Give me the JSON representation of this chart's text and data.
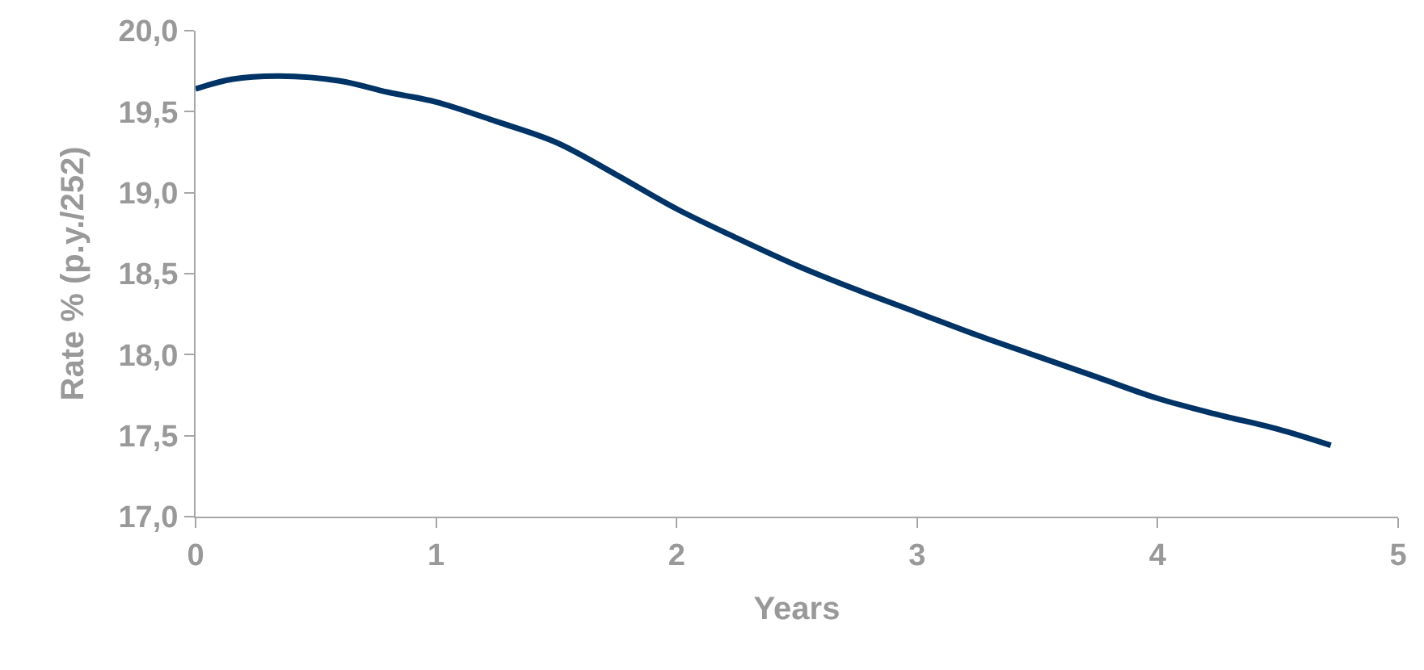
{
  "chart_data": {
    "type": "line",
    "xlabel": "Years",
    "ylabel": "Rate % (p.y./252)",
    "x": [
      0,
      0.15,
      0.35,
      0.6,
      0.8,
      1,
      1.25,
      1.5,
      1.75,
      2,
      2.25,
      2.5,
      2.75,
      3,
      3.25,
      3.5,
      3.75,
      4,
      4.25,
      4.5,
      4.72
    ],
    "series": [
      {
        "color": "#003366",
        "values": [
          19.64,
          19.7,
          19.72,
          19.69,
          19.62,
          19.56,
          19.44,
          19.31,
          19.11,
          18.9,
          18.72,
          18.55,
          18.4,
          18.26,
          18.12,
          17.99,
          17.86,
          17.73,
          17.63,
          17.54,
          17.44
        ]
      }
    ],
    "xlim": [
      0,
      5
    ],
    "xticks": [
      0,
      1,
      2,
      3,
      4,
      5
    ],
    "ylim": [
      17,
      20
    ],
    "yticks": [
      {
        "value": 17,
        "label": "17,0"
      },
      {
        "value": 17.5,
        "label": "17,5"
      },
      {
        "value": 18,
        "label": "18,0"
      },
      {
        "value": 18.5,
        "label": "18,5"
      },
      {
        "value": 19,
        "label": "19,0"
      },
      {
        "value": 19.5,
        "label": "19,5"
      },
      {
        "value": 20,
        "label": "20,0"
      }
    ],
    "marker": "none",
    "line_style": "solid"
  }
}
